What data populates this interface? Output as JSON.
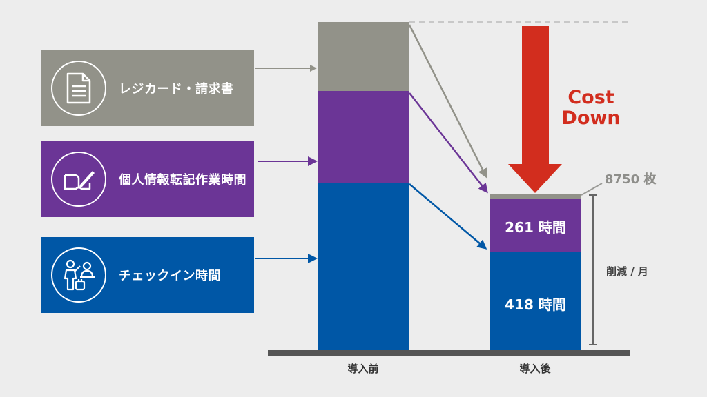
{
  "labels": {
    "receipt": "レジカード・請求書",
    "personal": "個人情報転記作業時間",
    "checkin": "チェックイン時間"
  },
  "icons": {
    "receipt": "document-icon",
    "personal": "notebook-pen-icon",
    "checkin": "reception-desk-icon"
  },
  "bars": {
    "before_label": "導入前",
    "after_label": "導入後",
    "after_personal_value": "261 時間",
    "after_checkin_value": "418 時間"
  },
  "annotations": {
    "cost_down_line1": "Cost",
    "cost_down_line2": "Down",
    "sheets": "8750 枚",
    "reduction": "削減 / 月"
  },
  "colors": {
    "gray": "#929289",
    "purple": "#6b3596",
    "blue": "#0057a6",
    "red_arrow": "#d22d1e",
    "baseline": "#555555"
  }
}
